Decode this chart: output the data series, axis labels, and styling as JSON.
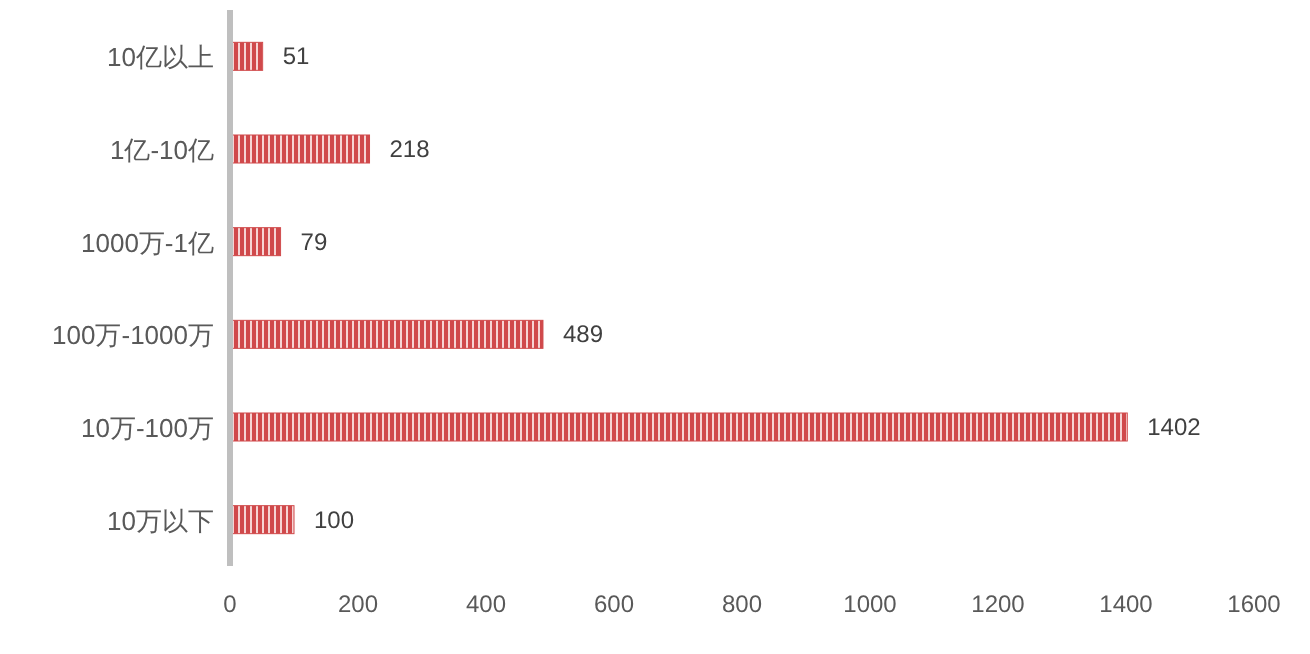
{
  "chart_data": {
    "type": "bar",
    "orientation": "horizontal",
    "categories": [
      "10亿以上",
      "1亿-10亿",
      "1000万-1亿",
      "100万-1000万",
      "10万-100万",
      "10万以下"
    ],
    "values": [
      51,
      218,
      79,
      489,
      1402,
      100
    ],
    "color": "#d0494b",
    "xlim": [
      0,
      1600
    ],
    "xticks": [
      0,
      200,
      400,
      600,
      800,
      1000,
      1200,
      1400,
      1600
    ],
    "data_labels": true,
    "grid": false
  }
}
